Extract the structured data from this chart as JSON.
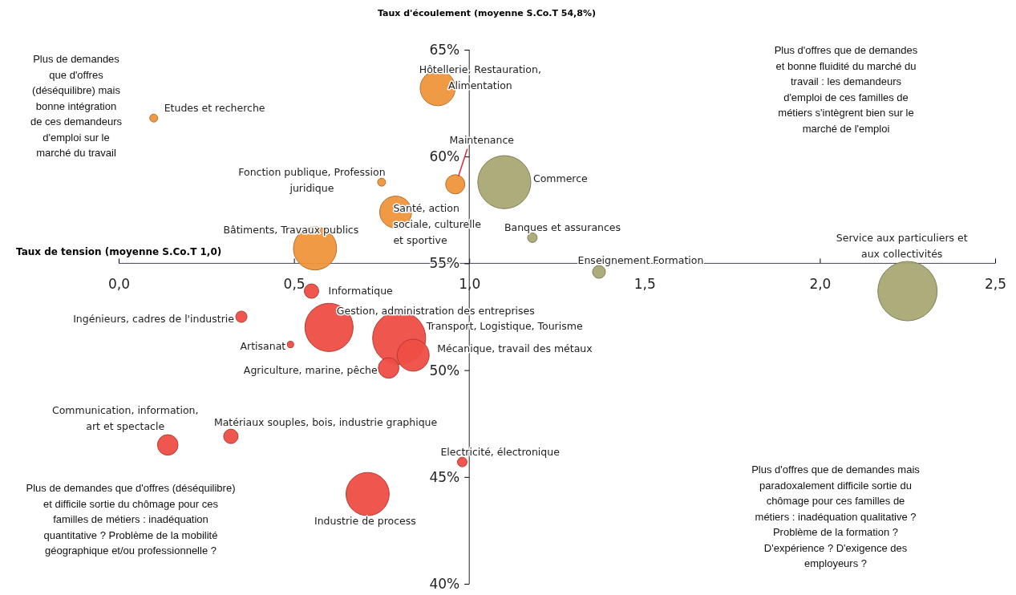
{
  "chart_data": {
    "type": "bubble",
    "xlabel": "Taux de tension (moyenne S.Co.T 1,0)",
    "ylabel": "Taux d'écoulement (moyenne S.Co.T 54,8%)",
    "xlim": [
      0,
      2.5
    ],
    "ylim": [
      40,
      65
    ],
    "xticks": [
      {
        "value": 0,
        "label": "0,0"
      },
      {
        "value": 0.5,
        "label": "0,5"
      },
      {
        "value": 1,
        "label": "1,0"
      },
      {
        "value": 1.5,
        "label": "1,5"
      },
      {
        "value": 2,
        "label": "2,0"
      },
      {
        "value": 2.5,
        "label": "2,5"
      }
    ],
    "yticks": [
      {
        "value": 40,
        "label": "40%"
      },
      {
        "value": 45,
        "label": "45%"
      },
      {
        "value": 50,
        "label": "50%"
      },
      {
        "value": 55,
        "label": "55%"
      },
      {
        "value": 60,
        "label": "60%"
      },
      {
        "value": 65,
        "label": "65%"
      }
    ],
    "grid": false,
    "series": [
      {
        "name": "Hôtellerie, Restauration, Alimentation",
        "color": "#f0953c",
        "x": [
          0.91
        ],
        "values": [
          63.2
        ],
        "sizes": [
          0.35
        ]
      },
      {
        "name": "Etudes et recherche",
        "color": "#f0953c",
        "x": [
          0.1
        ],
        "values": [
          61.8
        ],
        "sizes": [
          0.018
        ]
      },
      {
        "name": "Maintenance",
        "color": "#f0953c",
        "x": [
          0.96
        ],
        "values": [
          58.7
        ],
        "sizes": [
          0.105
        ]
      },
      {
        "name": "Commerce",
        "color": "#a9a874",
        "x": [
          1.1
        ],
        "values": [
          58.8
        ],
        "sizes": [
          0.8
        ]
      },
      {
        "name": "Fonction publique, Profession juridique",
        "color": "#f0953c",
        "x": [
          0.75
        ],
        "values": [
          58.8
        ],
        "sizes": [
          0.018
        ]
      },
      {
        "name": "Santé, action sociale, culturelle et sportive",
        "color": "#f0953c",
        "x": [
          0.79
        ],
        "values": [
          57.4
        ],
        "sizes": [
          0.29
        ]
      },
      {
        "name": "Bâtiments, Travaux publics",
        "color": "#f0953c",
        "x": [
          0.56
        ],
        "values": [
          55.7
        ],
        "sizes": [
          0.53
        ]
      },
      {
        "name": "Banques et assurances",
        "color": "#a9a874",
        "x": [
          1.18
        ],
        "values": [
          56.2
        ],
        "sizes": [
          0.026
        ]
      },
      {
        "name": "Enseignement Formation",
        "color": "#a9a874",
        "x": [
          1.37
        ],
        "values": [
          54.6
        ],
        "sizes": [
          0.047
        ]
      },
      {
        "name": "Service aux particuliers et aux collectivités",
        "color": "#a9a874",
        "x": [
          2.25
        ],
        "values": [
          53.7
        ],
        "sizes": [
          1
        ]
      },
      {
        "name": "Informatique",
        "color": "#ee4e44",
        "x": [
          0.55
        ],
        "values": [
          53.7
        ],
        "sizes": [
          0.059
        ]
      },
      {
        "name": "Ingénieurs, cadres de l'industrie",
        "color": "#ee4e44",
        "x": [
          0.35
        ],
        "values": [
          52.5
        ],
        "sizes": [
          0.036
        ]
      },
      {
        "name": "Gestion, administration des entreprises",
        "color": "#ee4e44",
        "x": [
          0.6
        ],
        "values": [
          52
        ],
        "sizes": [
          0.66
        ]
      },
      {
        "name": "Artisanat",
        "color": "#ee4e44",
        "x": [
          0.49
        ],
        "values": [
          51.2
        ],
        "sizes": [
          0.012
        ]
      },
      {
        "name": "Transport, Logistique, Tourisme",
        "color": "#ee4e44",
        "x": [
          0.8
        ],
        "values": [
          51.5
        ],
        "sizes": [
          0.8
        ]
      },
      {
        "name": "Mécanique, travail des métaux",
        "color": "#ee4e44",
        "x": [
          0.84
        ],
        "values": [
          50.7
        ],
        "sizes": [
          0.29
        ]
      },
      {
        "name": "Agriculture, marine, pêche",
        "color": "#ee4e44",
        "x": [
          0.77
        ],
        "values": [
          50.1
        ],
        "sizes": [
          0.12
        ]
      },
      {
        "name": "Communication, information, art et spectacle",
        "color": "#ee4e44",
        "x": [
          0.14
        ],
        "values": [
          46.5
        ],
        "sizes": [
          0.12
        ]
      },
      {
        "name": "Matériaux souples, bois, industrie graphique",
        "color": "#ee4e44",
        "x": [
          0.32
        ],
        "values": [
          46.9
        ],
        "sizes": [
          0.059
        ]
      },
      {
        "name": "Electricité, électronique",
        "color": "#ee4e44",
        "x": [
          0.98
        ],
        "values": [
          45.7
        ],
        "sizes": [
          0.026
        ]
      },
      {
        "name": "Industrie de process",
        "color": "#ee4e44",
        "x": [
          0.71
        ],
        "values": [
          44.2
        ],
        "sizes": [
          0.53
        ]
      }
    ],
    "annotations": [
      "Plus de demandes que d'offres (déséquilibre) mais bonne intégration de ces demandeurs d'emploi sur le marché du travail",
      "Plus d'offres que de demandes et bonne fluidité du marché du travail : les demandeurs d'emploi de ces familles de métiers s'intègrent bien sur le marché de l'emploi",
      "Plus de demandes que d'offres (déséquilibre) et difficile sortie du chômage pour ces familles de métiers : inadéquation quantitative ? Problème de la mobilité géographique et/ou professionnelle ?",
      "Plus d'offres que de demandes mais paradoxalement difficile sortie du chômage pour ces familles de métiers : inadéquation qualitative ? Problème de la formation ? D'expérience ? D'exigence des employeurs ?"
    ]
  }
}
